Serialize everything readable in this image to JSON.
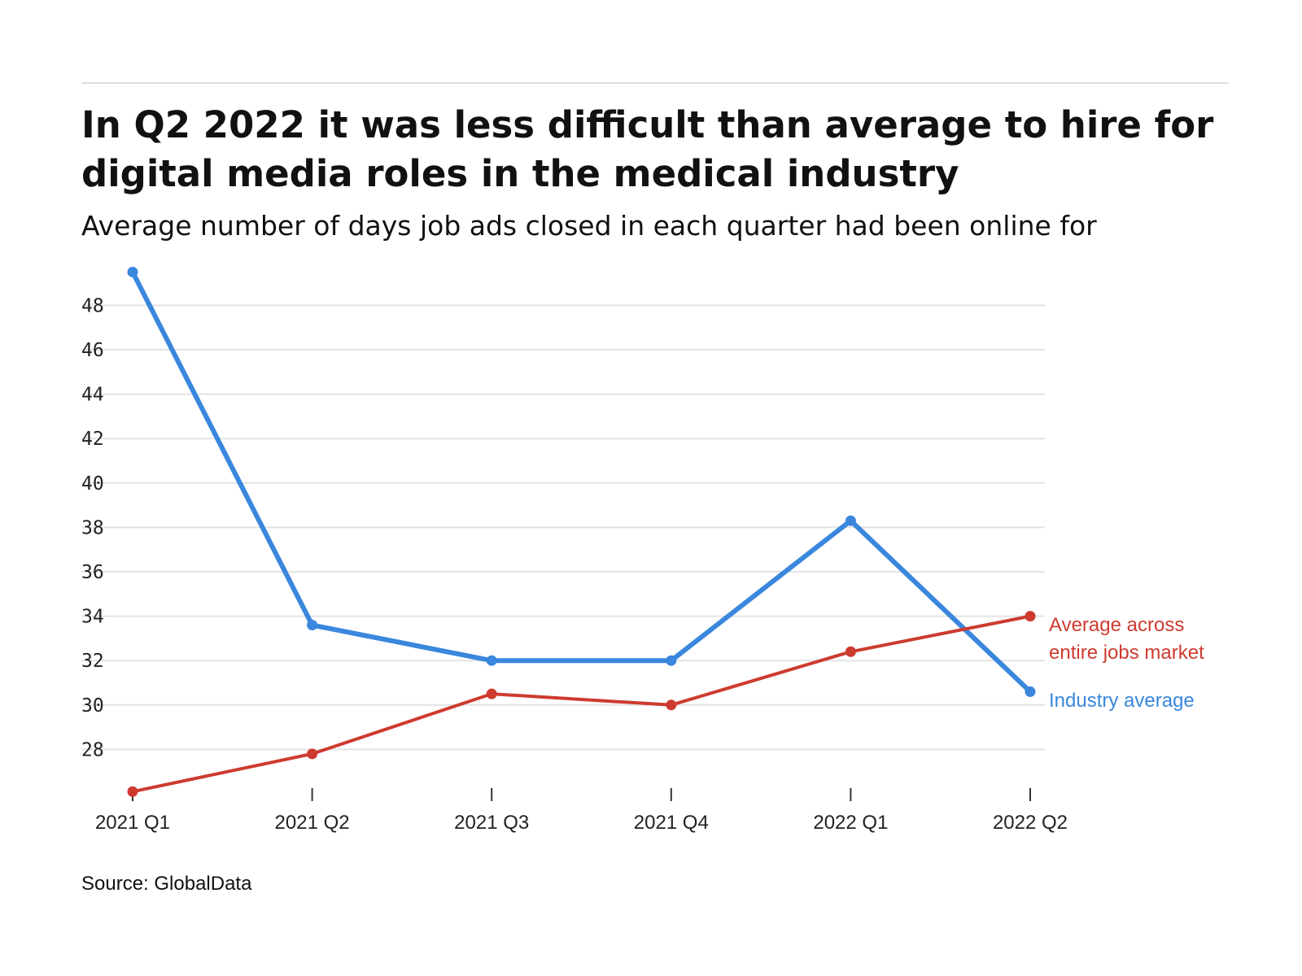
{
  "title": "In Q2 2022 it was less difficult than average to hire for digital media roles in the medical industry",
  "subtitle": "Average number of days job ads closed in each quarter had been online for",
  "source": "Source: GlobalData",
  "colors": {
    "industry": "#3a87dd",
    "market": "#cd3b2f",
    "grid": "#e3e3e3"
  },
  "chart_data": {
    "type": "line",
    "categories": [
      "2021 Q1",
      "2021 Q2",
      "2021 Q3",
      "2021 Q4",
      "2022 Q1",
      "2022 Q2"
    ],
    "series": [
      {
        "name": "Industry average",
        "color": "#3a87dd",
        "values": [
          49.5,
          33.6,
          32.0,
          32.0,
          38.3,
          30.6
        ]
      },
      {
        "name_lines": [
          "Average across",
          "entire jobs market"
        ],
        "color": "#cd3b2f",
        "values": [
          26.1,
          27.8,
          30.5,
          30.0,
          32.4,
          34.0
        ]
      }
    ],
    "yticks": [
      28,
      30,
      32,
      34,
      36,
      38,
      40,
      42,
      44,
      46,
      48
    ],
    "ylim": [
      26,
      50
    ],
    "grid": true,
    "legend": "direct labels at right end of lines"
  }
}
